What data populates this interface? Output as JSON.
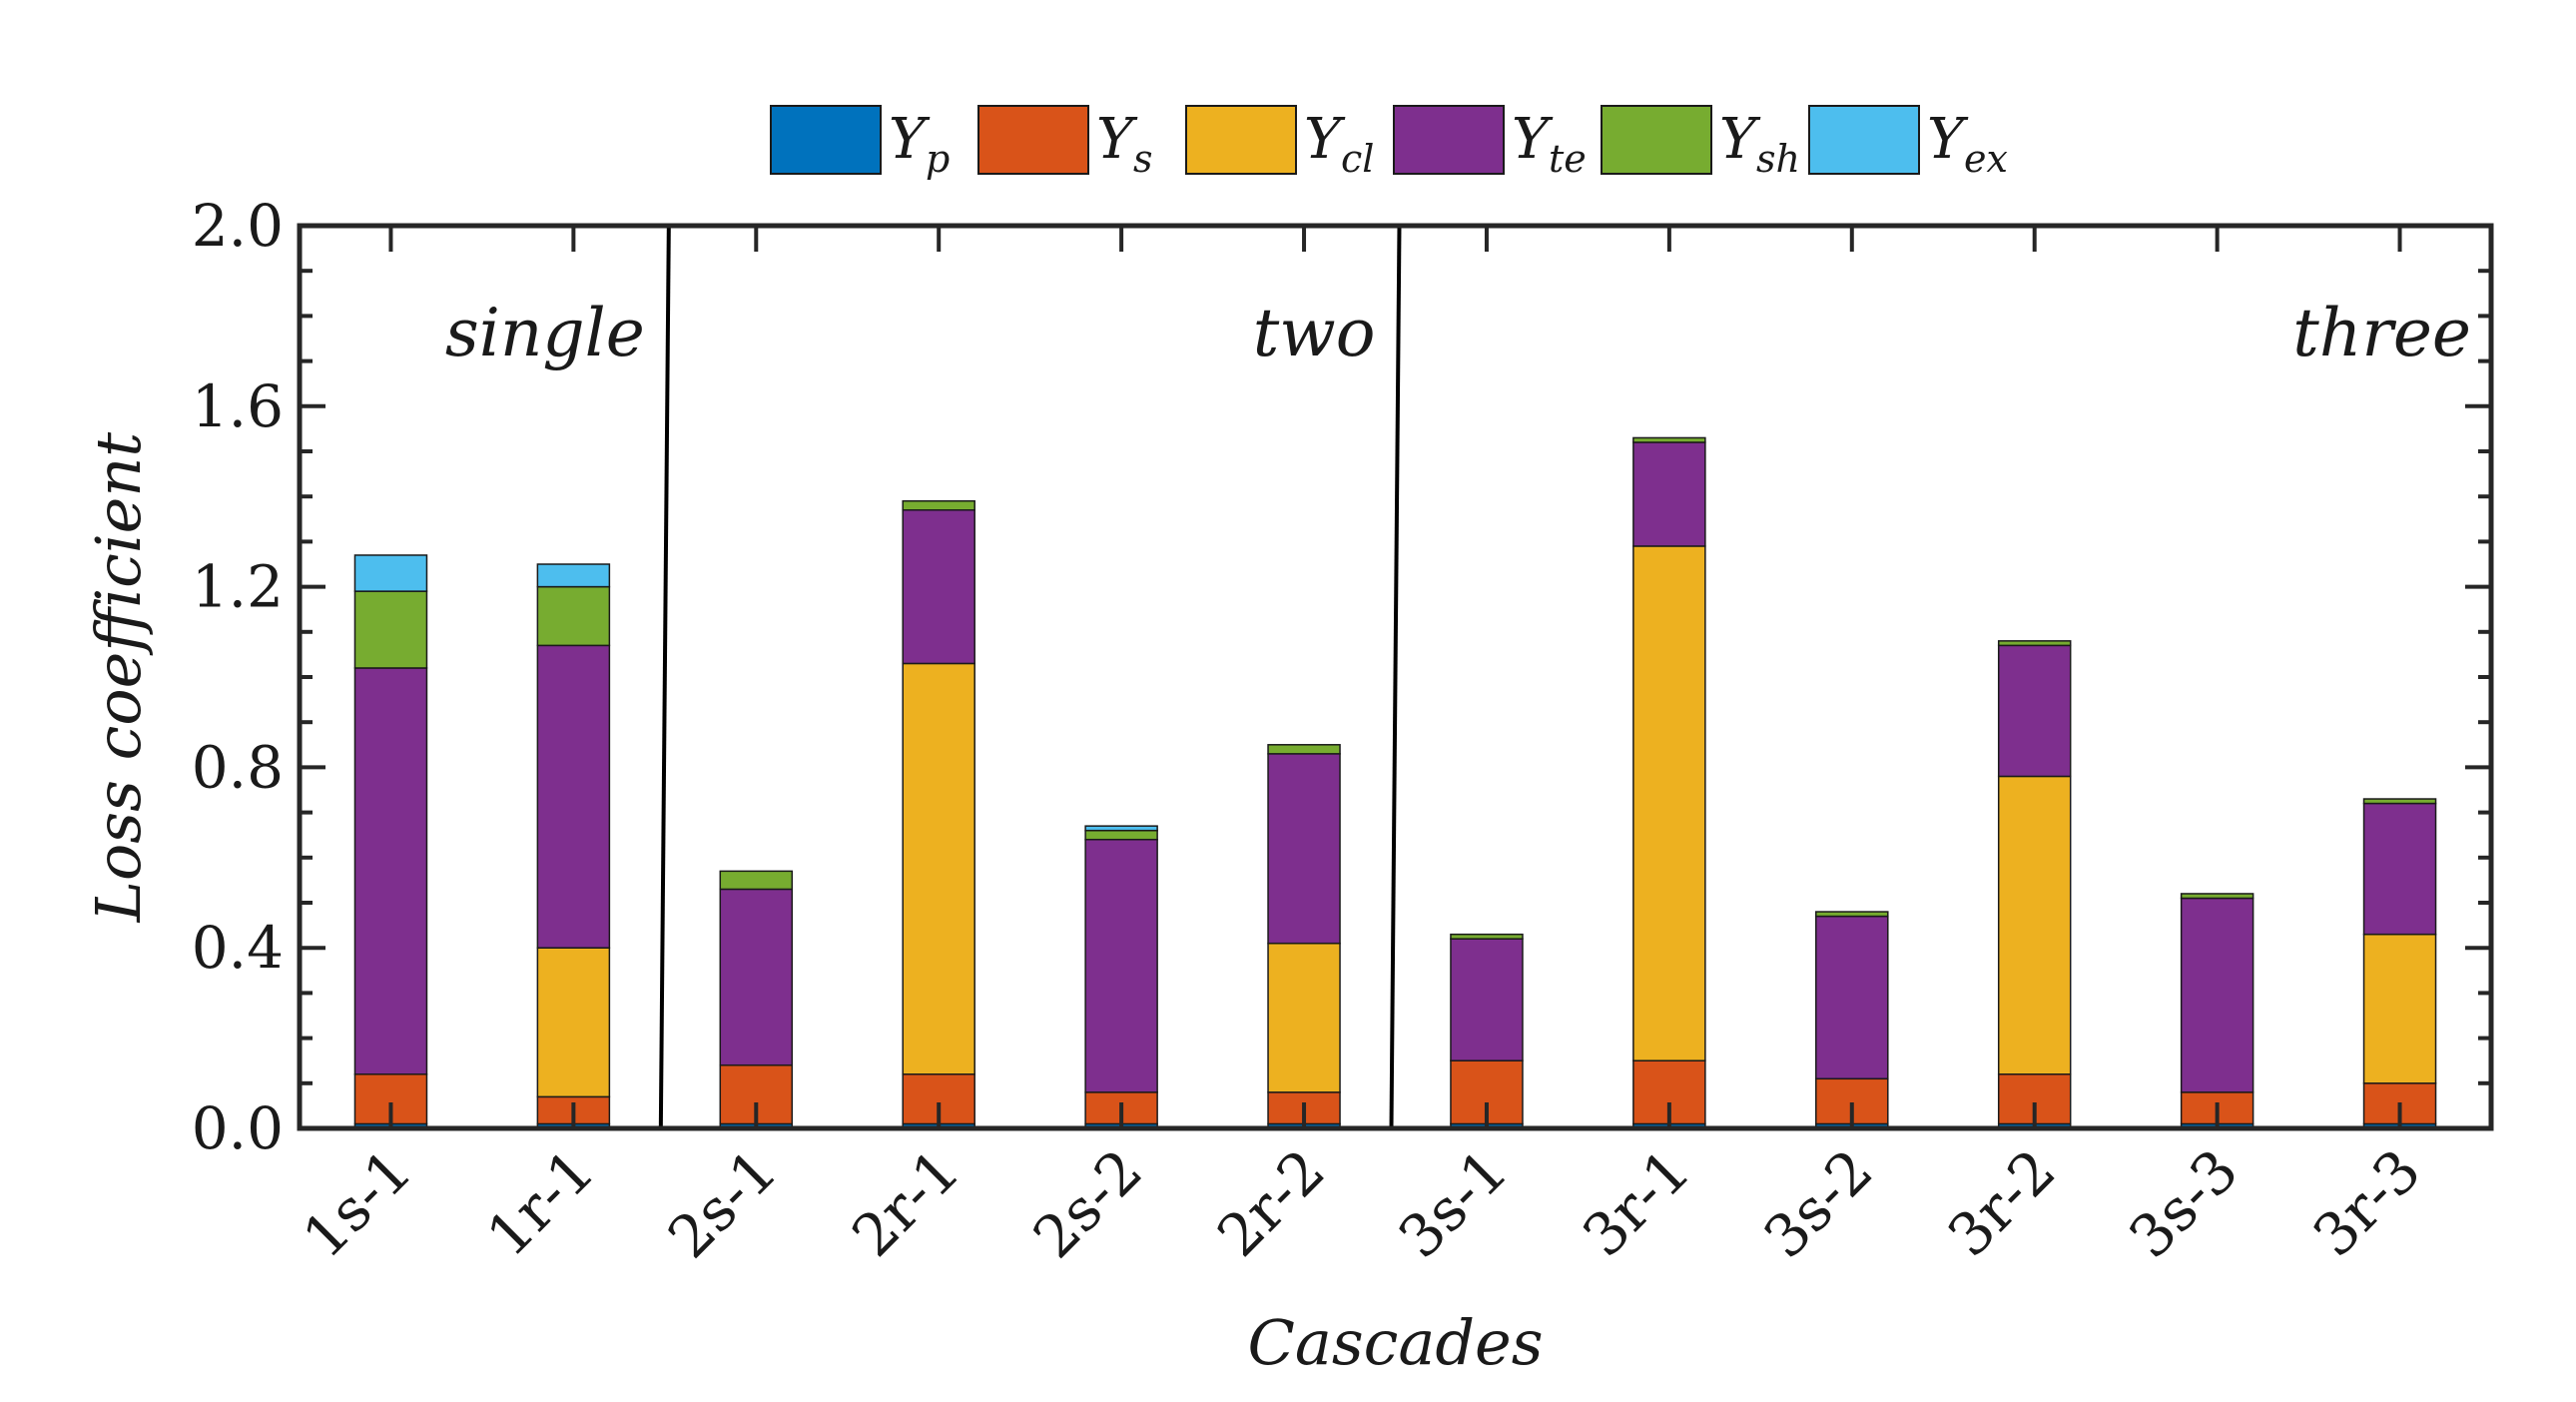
{
  "chart_data": {
    "type": "bar",
    "stacked": true,
    "xlabel": "Cascades",
    "ylabel": "Loss coefficient",
    "ylim": [
      0,
      2.0
    ],
    "yticks": [
      "0.0",
      "0.4",
      "0.8",
      "1.2",
      "1.6",
      "2.0"
    ],
    "categories": [
      "1s-1",
      "1r-1",
      "2s-1",
      "2r-1",
      "2s-2",
      "2r-2",
      "3s-1",
      "3r-1",
      "3s-2",
      "3r-2",
      "3s-3",
      "3r-3"
    ],
    "groups": [
      {
        "label": "single",
        "categories": [
          "1s-1",
          "1r-1"
        ]
      },
      {
        "label": "two",
        "categories": [
          "2s-1",
          "2r-1",
          "2s-2",
          "2r-2"
        ]
      },
      {
        "label": "three",
        "categories": [
          "3s-1",
          "3r-1",
          "3s-2",
          "3r-2",
          "3s-3",
          "3r-3"
        ]
      }
    ],
    "legend_position": "top",
    "series": [
      {
        "name": "Y",
        "sub": "p",
        "color": "#0072BD",
        "values": [
          0.01,
          0.01,
          0.01,
          0.01,
          0.01,
          0.01,
          0.01,
          0.01,
          0.01,
          0.01,
          0.01,
          0.01
        ]
      },
      {
        "name": "Y",
        "sub": "s",
        "color": "#D95319",
        "values": [
          0.11,
          0.06,
          0.13,
          0.11,
          0.07,
          0.07,
          0.14,
          0.14,
          0.1,
          0.11,
          0.07,
          0.09
        ]
      },
      {
        "name": "Y",
        "sub": "cl",
        "color": "#EDB120",
        "values": [
          0.0,
          0.33,
          0.0,
          0.91,
          0.0,
          0.33,
          0.0,
          1.14,
          0.0,
          0.66,
          0.0,
          0.33
        ]
      },
      {
        "name": "Y",
        "sub": "te",
        "color": "#7E2F8E",
        "values": [
          0.9,
          0.67,
          0.39,
          0.34,
          0.56,
          0.42,
          0.27,
          0.23,
          0.36,
          0.29,
          0.43,
          0.29
        ]
      },
      {
        "name": "Y",
        "sub": "sh",
        "color": "#77AC30",
        "values": [
          0.17,
          0.13,
          0.04,
          0.02,
          0.02,
          0.02,
          0.01,
          0.01,
          0.01,
          0.01,
          0.01,
          0.01
        ]
      },
      {
        "name": "Y",
        "sub": "ex",
        "color": "#4DBEEE",
        "values": [
          0.08,
          0.05,
          0.0,
          0.0,
          0.01,
          0.0,
          0.0,
          0.0,
          0.0,
          0.0,
          0.0,
          0.0
        ]
      }
    ]
  }
}
